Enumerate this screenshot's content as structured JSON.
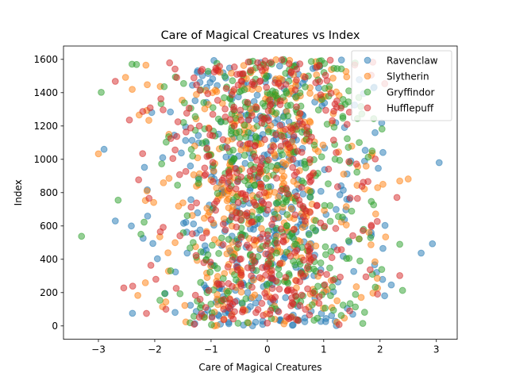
{
  "chart_data": {
    "type": "scatter",
    "title": "Care of Magical Creatures vs Index",
    "xlabel": "Care of Magical Creatures",
    "ylabel": "Index",
    "xlim": [
      -3.62,
      3.37
    ],
    "ylim": [
      -80,
      1680
    ],
    "xticks": [
      -3,
      -2,
      -1,
      0,
      1,
      2,
      3
    ],
    "yticks": [
      0,
      200,
      400,
      600,
      800,
      1000,
      1200,
      1400,
      1600
    ],
    "grid": false,
    "legend_position": "top-right",
    "marker_alpha": 0.5,
    "index_max": 1599,
    "series": [
      {
        "name": "Ravenclaw",
        "color": "#1f77b4",
        "x_std": 0.95,
        "sample_seed": 11,
        "outliers": [
          {
            "x": 3.05,
            "y": 980
          },
          {
            "x": 2.93,
            "y": 493
          },
          {
            "x": 2.73,
            "y": 437
          },
          {
            "x": -2.9,
            "y": 1060
          },
          {
            "x": -2.7,
            "y": 630
          },
          {
            "x": 2.2,
            "y": 246
          }
        ]
      },
      {
        "name": "Slytherin",
        "color": "#ff7f0e",
        "x_std": 0.85,
        "sample_seed": 23,
        "outliers": [
          {
            "x": -3.0,
            "y": 1033
          },
          {
            "x": 2.5,
            "y": 882
          },
          {
            "x": 2.35,
            "y": 870
          },
          {
            "x": -2.4,
            "y": 1420
          }
        ]
      },
      {
        "name": "Gryffindor",
        "color": "#2ca02c",
        "x_std": 0.9,
        "sample_seed": 37,
        "outliers": [
          {
            "x": -3.3,
            "y": 538
          },
          {
            "x": -2.95,
            "y": 1402
          },
          {
            "x": 2.4,
            "y": 213
          },
          {
            "x": 2.35,
            "y": 490
          },
          {
            "x": -2.65,
            "y": 755
          }
        ]
      },
      {
        "name": "Hufflepuff",
        "color": "#d62728",
        "x_std": 0.9,
        "sample_seed": 53,
        "outliers": [
          {
            "x": -2.7,
            "y": 1468
          },
          {
            "x": -2.55,
            "y": 228
          },
          {
            "x": 2.3,
            "y": 771
          },
          {
            "x": 2.35,
            "y": 302
          },
          {
            "x": -2.45,
            "y": 1236
          }
        ]
      }
    ]
  }
}
